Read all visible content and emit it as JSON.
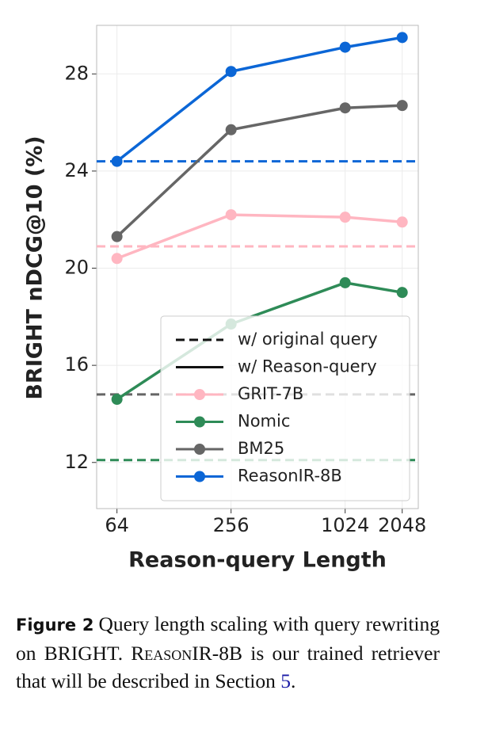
{
  "chart_data": {
    "type": "line",
    "x_label": "Reason-query Length",
    "y_label": "BRIGHT nDCG@10 (%)",
    "x": [
      64,
      256,
      1024,
      2048
    ],
    "xlim": [
      50,
      2490
    ],
    "xticks": [
      64,
      256,
      1024,
      2048
    ],
    "x_log_base": 2,
    "ylim": [
      10.1,
      30
    ],
    "yticks": [
      12,
      16,
      20,
      24,
      28
    ],
    "grid": true,
    "legend": "lower right",
    "style_labels": {
      "dashed": "w/ original query",
      "solid": "w/ Reason-query"
    },
    "series": [
      {
        "name": "GRIT-7B",
        "color": "#ffb6c1",
        "values": [
          20.4,
          22.2,
          22.1,
          21.9
        ],
        "baseline": 20.9
      },
      {
        "name": "Nomic",
        "color": "#2e8b57",
        "values": [
          14.6,
          17.7,
          19.4,
          19.0
        ],
        "baseline": 12.1
      },
      {
        "name": "BM25",
        "color": "#666666",
        "values": [
          21.3,
          25.7,
          26.6,
          26.7
        ],
        "baseline": 14.8
      },
      {
        "name": "ReasonIR-8B",
        "color": "#0b66d6",
        "values": [
          24.4,
          28.1,
          29.1,
          29.5
        ],
        "baseline": 24.4
      }
    ]
  },
  "caption": {
    "label": "Figure 2",
    "text_before": "Query length scaling with query rewriting on BRIGHT. ",
    "name": "ReasonIR-8B",
    "text_after": " is our trained retriever that will be described in Section ",
    "ref": "5",
    "end": "."
  }
}
